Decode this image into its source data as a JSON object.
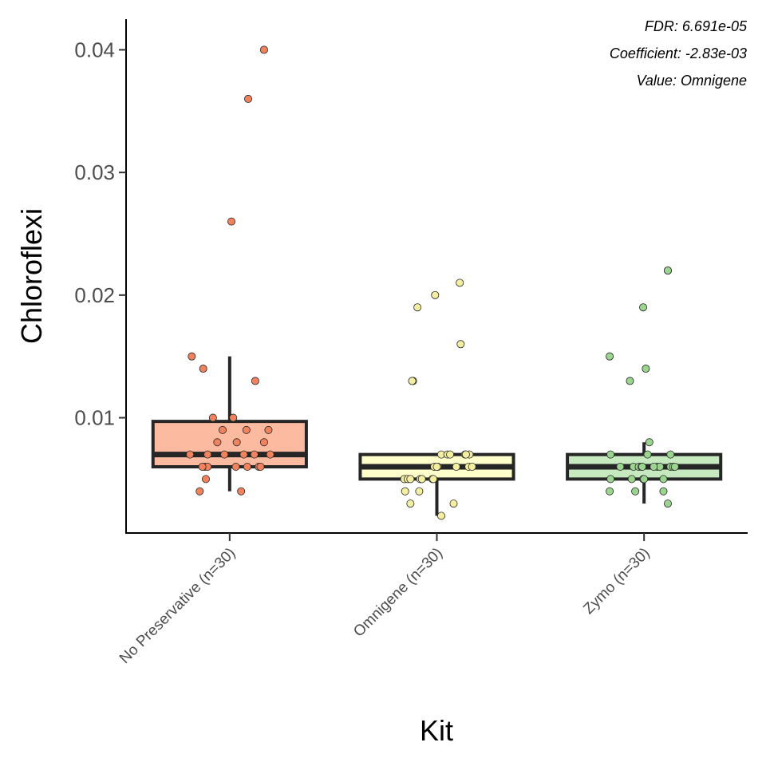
{
  "chart_data": {
    "type": "box",
    "xlabel": "Kit",
    "ylabel": "Chloroflexi",
    "ylim": [
      0.0006,
      0.0425
    ],
    "yticks": [
      0.01,
      0.02,
      0.03,
      0.04
    ],
    "ytick_labels": [
      "0.01",
      "0.02",
      "0.03",
      "0.04"
    ],
    "grid": false,
    "annotations": [
      "FDR: 6.691e-05",
      "Coefficient: -2.83e-03",
      "Value: Omnigene"
    ],
    "categories": [
      "No Preservative (n=30)",
      "Omnigene (n=30)",
      "Zymo (n=30)"
    ],
    "groups": [
      {
        "box": {
          "q1": 0.006,
          "median": 0.007,
          "q3": 0.0097,
          "whisker_low": 0.004,
          "whisker_high": 0.015
        },
        "fill": "#fcbba1",
        "point_color": "#f0825e",
        "points": [
          {
            "j": 0.39,
            "y": 0.04
          },
          {
            "j": 0.21,
            "y": 0.036
          },
          {
            "j": 0.02,
            "y": 0.026
          },
          {
            "j": -0.43,
            "y": 0.015
          },
          {
            "j": -0.3,
            "y": 0.014
          },
          {
            "j": 0.29,
            "y": 0.013
          },
          {
            "j": -0.19,
            "y": 0.01
          },
          {
            "j": 0.04,
            "y": 0.01
          },
          {
            "j": -0.08,
            "y": 0.009
          },
          {
            "j": 0.19,
            "y": 0.009
          },
          {
            "j": 0.44,
            "y": 0.009
          },
          {
            "j": -0.14,
            "y": 0.008
          },
          {
            "j": 0.08,
            "y": 0.008
          },
          {
            "j": 0.39,
            "y": 0.008
          },
          {
            "j": -0.45,
            "y": 0.007
          },
          {
            "j": -0.25,
            "y": 0.007
          },
          {
            "j": -0.06,
            "y": 0.007
          },
          {
            "j": 0.16,
            "y": 0.007
          },
          {
            "j": 0.28,
            "y": 0.007
          },
          {
            "j": 0.46,
            "y": 0.007
          },
          {
            "j": -0.28,
            "y": 0.006
          },
          {
            "j": -0.25,
            "y": 0.006
          },
          {
            "j": 0.07,
            "y": 0.006
          },
          {
            "j": 0.2,
            "y": 0.006
          },
          {
            "j": 0.33,
            "y": 0.006
          },
          {
            "j": 0.35,
            "y": 0.006
          },
          {
            "j": -0.31,
            "y": 0.006
          },
          {
            "j": -0.27,
            "y": 0.005
          },
          {
            "j": -0.34,
            "y": 0.004
          },
          {
            "j": 0.13,
            "y": 0.004
          }
        ]
      },
      {
        "box": {
          "q1": 0.005,
          "median": 0.006,
          "q3": 0.007,
          "whisker_low": 0.002,
          "whisker_high": 0.007
        },
        "fill": "#ffffcc",
        "point_color": "#f3eea0",
        "points": [
          {
            "j": 0.26,
            "y": 0.021
          },
          {
            "j": -0.02,
            "y": 0.02
          },
          {
            "j": -0.22,
            "y": 0.019
          },
          {
            "j": 0.27,
            "y": 0.016
          },
          {
            "j": -0.27,
            "y": 0.013
          },
          {
            "j": -0.28,
            "y": 0.013
          },
          {
            "j": 0.05,
            "y": 0.007
          },
          {
            "j": 0.12,
            "y": 0.007
          },
          {
            "j": 0.15,
            "y": 0.007
          },
          {
            "j": 0.32,
            "y": 0.007
          },
          {
            "j": 0.37,
            "y": 0.007
          },
          {
            "j": -0.03,
            "y": 0.006
          },
          {
            "j": 0.01,
            "y": 0.006
          },
          {
            "j": 0.22,
            "y": 0.006
          },
          {
            "j": 0.36,
            "y": 0.006
          },
          {
            "j": -0.37,
            "y": 0.005
          },
          {
            "j": -0.33,
            "y": 0.005
          },
          {
            "j": -0.3,
            "y": 0.005
          },
          {
            "j": -0.19,
            "y": 0.005
          },
          {
            "j": -0.17,
            "y": 0.005
          },
          {
            "j": -0.05,
            "y": 0.005
          },
          {
            "j": -0.04,
            "y": 0.005
          },
          {
            "j": 0.33,
            "y": 0.007
          },
          {
            "j": -0.36,
            "y": 0.004
          },
          {
            "j": -0.2,
            "y": 0.004
          },
          {
            "j": -0.3,
            "y": 0.003
          },
          {
            "j": 0.19,
            "y": 0.003
          },
          {
            "j": 0.05,
            "y": 0.002
          },
          {
            "j": 0.4,
            "y": 0.006
          },
          {
            "j": 0.0,
            "y": 0.006
          }
        ]
      },
      {
        "box": {
          "q1": 0.005,
          "median": 0.006,
          "q3": 0.007,
          "whisker_low": 0.003,
          "whisker_high": 0.008
        },
        "fill": "#c7e9c0",
        "point_color": "#9ad48f",
        "points": [
          {
            "j": 0.27,
            "y": 0.022
          },
          {
            "j": 0.27,
            "y": 0.022
          },
          {
            "j": -0.01,
            "y": 0.019
          },
          {
            "j": -0.39,
            "y": 0.015
          },
          {
            "j": 0.02,
            "y": 0.014
          },
          {
            "j": -0.16,
            "y": 0.013
          },
          {
            "j": 0.06,
            "y": 0.008
          },
          {
            "j": -0.38,
            "y": 0.007
          },
          {
            "j": 0.04,
            "y": 0.007
          },
          {
            "j": 0.3,
            "y": 0.007
          },
          {
            "j": -0.27,
            "y": 0.006
          },
          {
            "j": -0.12,
            "y": 0.006
          },
          {
            "j": -0.06,
            "y": 0.006
          },
          {
            "j": -0.03,
            "y": 0.006
          },
          {
            "j": -0.02,
            "y": 0.006
          },
          {
            "j": 0.15,
            "y": 0.006
          },
          {
            "j": 0.18,
            "y": 0.006
          },
          {
            "j": 0.3,
            "y": 0.006
          },
          {
            "j": 0.33,
            "y": 0.006
          },
          {
            "j": 0.35,
            "y": 0.006
          },
          {
            "j": -0.38,
            "y": 0.005
          },
          {
            "j": -0.14,
            "y": 0.005
          },
          {
            "j": -0.01,
            "y": 0.005
          },
          {
            "j": 0.0,
            "y": 0.005
          },
          {
            "j": 0.22,
            "y": 0.005
          },
          {
            "j": -0.39,
            "y": 0.004
          },
          {
            "j": -0.1,
            "y": 0.004
          },
          {
            "j": 0.22,
            "y": 0.004
          },
          {
            "j": 0.27,
            "y": 0.003
          },
          {
            "j": 0.11,
            "y": 0.006
          }
        ]
      }
    ]
  }
}
